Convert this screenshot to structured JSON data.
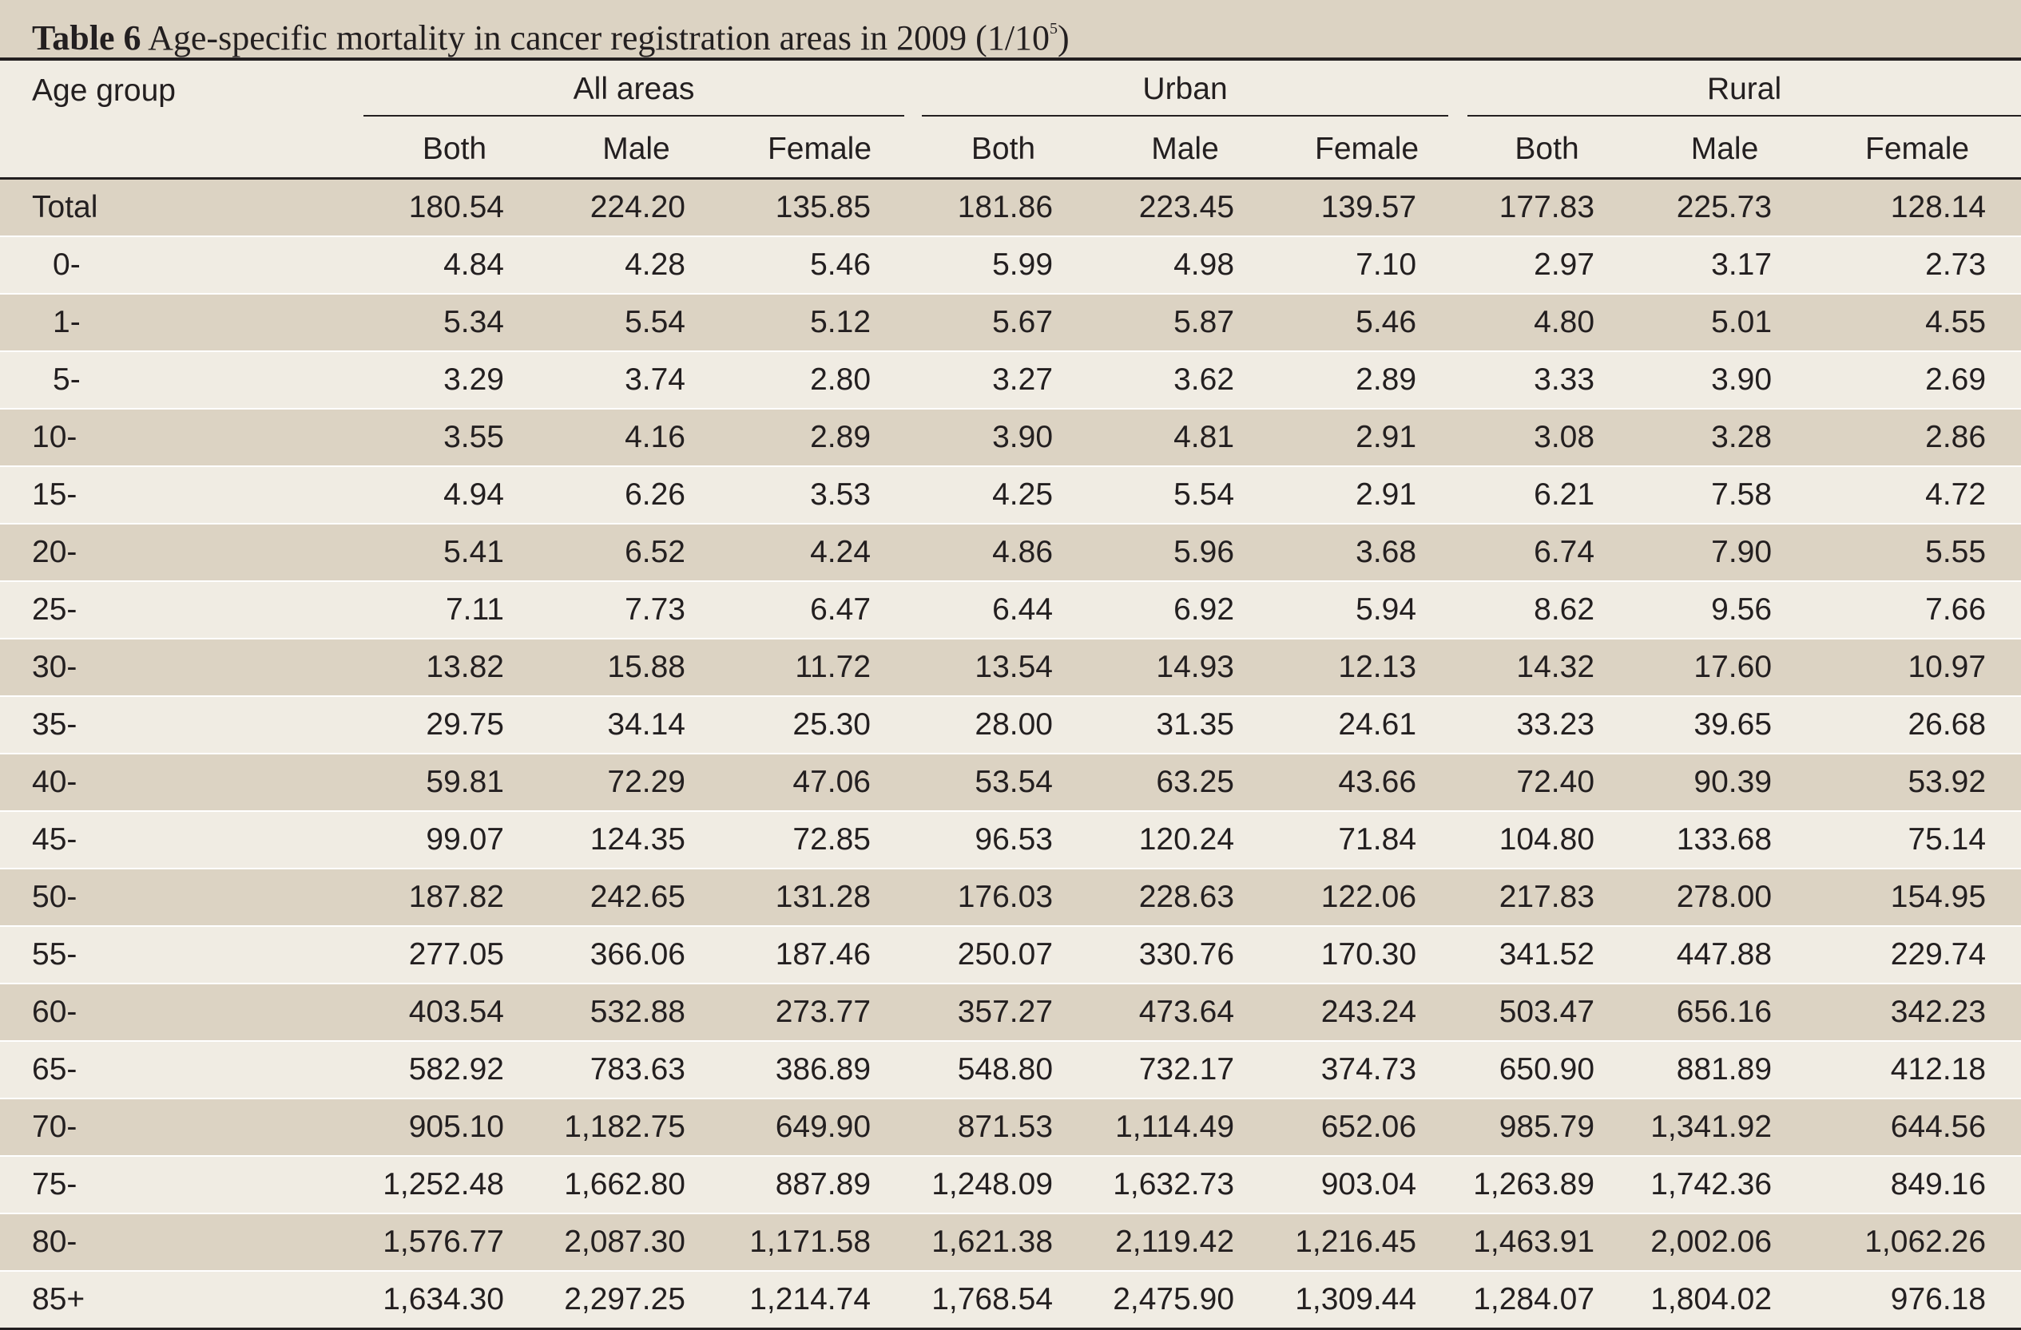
{
  "caption": {
    "label": "Table 6",
    "text": "Age-specific mortality in cancer registration areas in 2009 (1/10",
    "superscript": "5",
    "close": ")"
  },
  "header": {
    "age_group": "Age group",
    "groups": [
      "All areas",
      "Urban",
      "Rural"
    ],
    "subcolumns": [
      "Both",
      "Male",
      "Female"
    ]
  },
  "colors": {
    "shaded_row": "#dcd3c3",
    "light_row": "#f0ece3",
    "text": "#231f20"
  },
  "rows": [
    {
      "age": "Total",
      "values": [
        "180.54",
        "224.20",
        "135.85",
        "181.86",
        "223.45",
        "139.57",
        "177.83",
        "225.73",
        "128.14"
      ]
    },
    {
      "age": "0-",
      "values": [
        "4.84",
        "4.28",
        "5.46",
        "5.99",
        "4.98",
        "7.10",
        "2.97",
        "3.17",
        "2.73"
      ]
    },
    {
      "age": "1-",
      "values": [
        "5.34",
        "5.54",
        "5.12",
        "5.67",
        "5.87",
        "5.46",
        "4.80",
        "5.01",
        "4.55"
      ]
    },
    {
      "age": "5-",
      "values": [
        "3.29",
        "3.74",
        "2.80",
        "3.27",
        "3.62",
        "2.89",
        "3.33",
        "3.90",
        "2.69"
      ]
    },
    {
      "age": "10-",
      "values": [
        "3.55",
        "4.16",
        "2.89",
        "3.90",
        "4.81",
        "2.91",
        "3.08",
        "3.28",
        "2.86"
      ]
    },
    {
      "age": "15-",
      "values": [
        "4.94",
        "6.26",
        "3.53",
        "4.25",
        "5.54",
        "2.91",
        "6.21",
        "7.58",
        "4.72"
      ]
    },
    {
      "age": "20-",
      "values": [
        "5.41",
        "6.52",
        "4.24",
        "4.86",
        "5.96",
        "3.68",
        "6.74",
        "7.90",
        "5.55"
      ]
    },
    {
      "age": "25-",
      "values": [
        "7.11",
        "7.73",
        "6.47",
        "6.44",
        "6.92",
        "5.94",
        "8.62",
        "9.56",
        "7.66"
      ]
    },
    {
      "age": "30-",
      "values": [
        "13.82",
        "15.88",
        "11.72",
        "13.54",
        "14.93",
        "12.13",
        "14.32",
        "17.60",
        "10.97"
      ]
    },
    {
      "age": "35-",
      "values": [
        "29.75",
        "34.14",
        "25.30",
        "28.00",
        "31.35",
        "24.61",
        "33.23",
        "39.65",
        "26.68"
      ]
    },
    {
      "age": "40-",
      "values": [
        "59.81",
        "72.29",
        "47.06",
        "53.54",
        "63.25",
        "43.66",
        "72.40",
        "90.39",
        "53.92"
      ]
    },
    {
      "age": "45-",
      "values": [
        "99.07",
        "124.35",
        "72.85",
        "96.53",
        "120.24",
        "71.84",
        "104.80",
        "133.68",
        "75.14"
      ]
    },
    {
      "age": "50-",
      "values": [
        "187.82",
        "242.65",
        "131.28",
        "176.03",
        "228.63",
        "122.06",
        "217.83",
        "278.00",
        "154.95"
      ]
    },
    {
      "age": "55-",
      "values": [
        "277.05",
        "366.06",
        "187.46",
        "250.07",
        "330.76",
        "170.30",
        "341.52",
        "447.88",
        "229.74"
      ]
    },
    {
      "age": "60-",
      "values": [
        "403.54",
        "532.88",
        "273.77",
        "357.27",
        "473.64",
        "243.24",
        "503.47",
        "656.16",
        "342.23"
      ]
    },
    {
      "age": "65-",
      "values": [
        "582.92",
        "783.63",
        "386.89",
        "548.80",
        "732.17",
        "374.73",
        "650.90",
        "881.89",
        "412.18"
      ]
    },
    {
      "age": "70-",
      "values": [
        "905.10",
        "1,182.75",
        "649.90",
        "871.53",
        "1,114.49",
        "652.06",
        "985.79",
        "1,341.92",
        "644.56"
      ]
    },
    {
      "age": "75-",
      "values": [
        "1,252.48",
        "1,662.80",
        "887.89",
        "1,248.09",
        "1,632.73",
        "903.04",
        "1,263.89",
        "1,742.36",
        "849.16"
      ]
    },
    {
      "age": "80-",
      "values": [
        "1,576.77",
        "2,087.30",
        "1,171.58",
        "1,621.38",
        "2,119.42",
        "1,216.45",
        "1,463.91",
        "2,002.06",
        "1,062.26"
      ]
    },
    {
      "age": "85+",
      "values": [
        "1,634.30",
        "2,297.25",
        "1,214.74",
        "1,768.54",
        "2,475.90",
        "1,309.44",
        "1,284.07",
        "1,804.02",
        "976.18"
      ]
    }
  ]
}
